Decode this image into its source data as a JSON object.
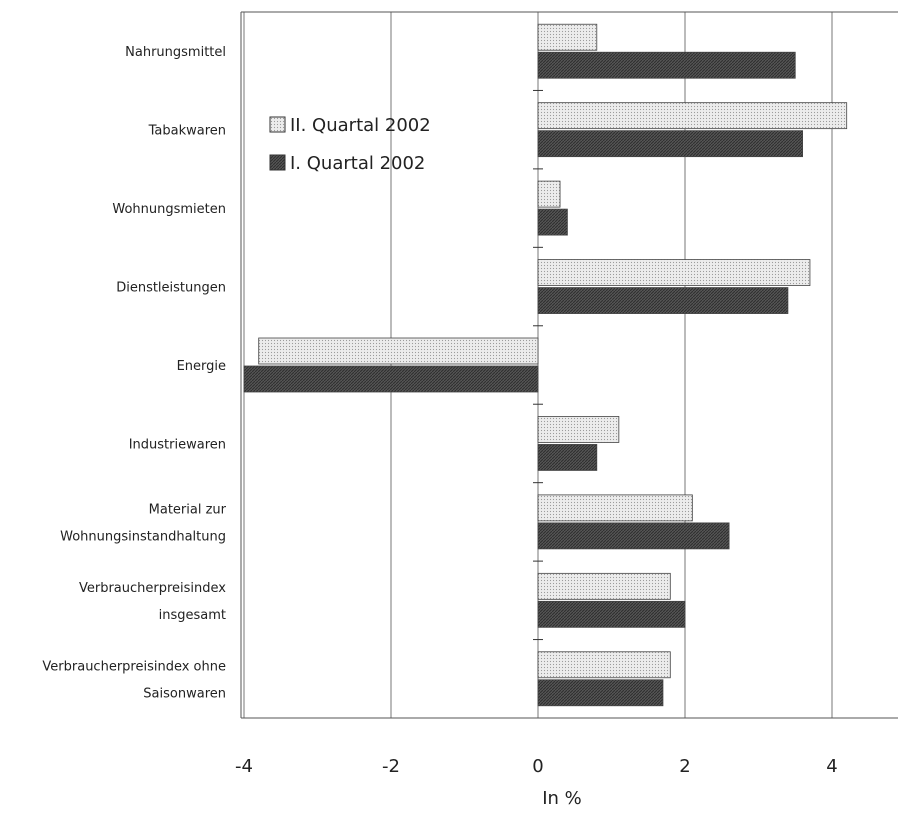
{
  "chart_data": {
    "type": "bar",
    "orientation": "horizontal",
    "categories": [
      [
        "Nahrungsmittel"
      ],
      [
        "Tabakwaren"
      ],
      [
        "Wohnungsmieten"
      ],
      [
        "Dienstleistungen"
      ],
      [
        "Energie"
      ],
      [
        "Industriewaren"
      ],
      [
        "Material zur",
        "Wohnungsinstandhaltung"
      ],
      [
        "Verbraucherpreisindex",
        "insgesamt"
      ],
      [
        "Verbraucherpreisindex ohne",
        "Saisonwaren"
      ]
    ],
    "series": [
      {
        "name": "II. Quartal 2002",
        "values": [
          0.8,
          4.2,
          0.3,
          3.7,
          -3.8,
          1.1,
          2.1,
          1.8,
          1.8
        ],
        "color": "#e2e2e2",
        "pattern": "dotted"
      },
      {
        "name": "I. Quartal 2002",
        "values": [
          3.5,
          3.6,
          0.4,
          3.4,
          -4.0,
          0.8,
          2.6,
          2.0,
          1.7
        ],
        "color": "#5a5a5a",
        "pattern": "hatched"
      }
    ],
    "xlabel": "In %",
    "xlim": [
      -4,
      4.9
    ],
    "xticks": [
      -4,
      -2,
      0,
      2,
      4
    ],
    "grid": "vertical",
    "legend": "upper-left"
  }
}
